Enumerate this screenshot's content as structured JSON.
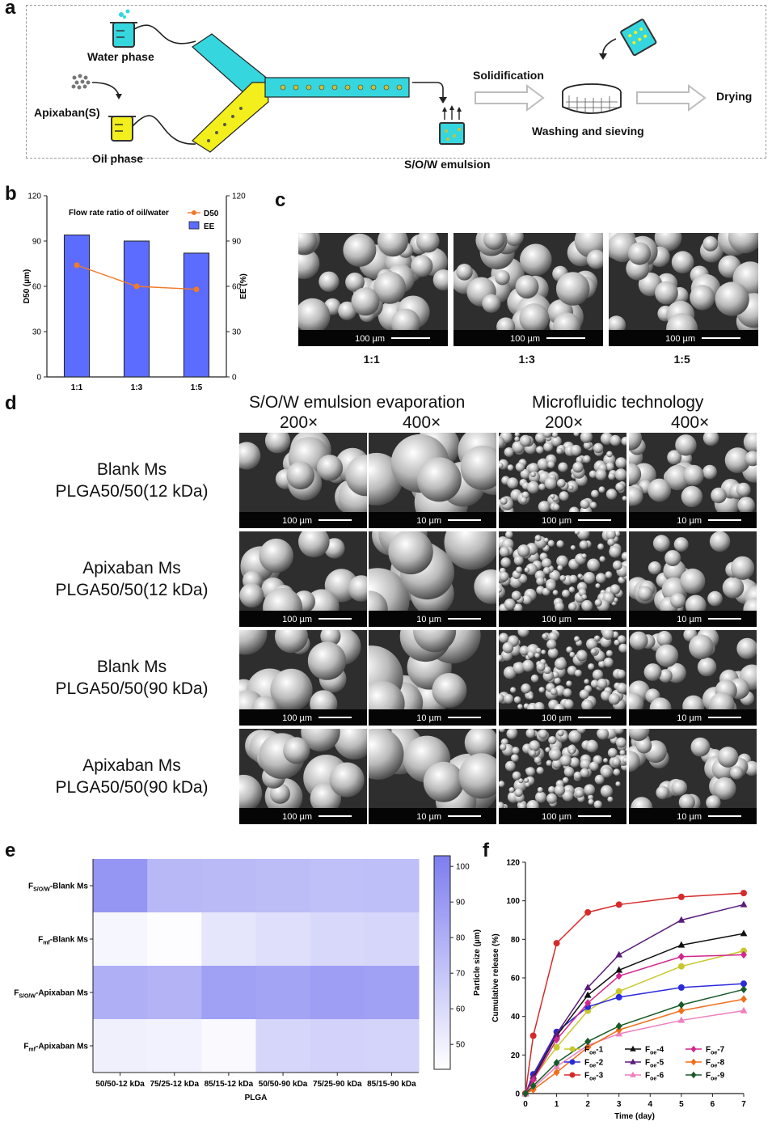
{
  "panels": {
    "a": "a",
    "b": "b",
    "c": "c",
    "d": "d",
    "e": "e",
    "f": "f"
  },
  "panel_a": {
    "water_phase": "Water phase",
    "apixaban": "Apixaban(S)",
    "oil_phase": "Oil phase",
    "emulsion": "S/O/W emulsion",
    "solidification": "Solidification",
    "washing": "Washing and sieving",
    "drying": "Drying",
    "colors": {
      "water": "#35d6de",
      "oil": "#f2ef1c",
      "droplet": "#c9c23a",
      "arrow": "#bdbdbd"
    }
  },
  "panel_c": {
    "images": [
      {
        "label": "1:1",
        "scale": "100 µm"
      },
      {
        "label": "1:3",
        "scale": "100 µm"
      },
      {
        "label": "1:5",
        "scale": "100 µm"
      }
    ]
  },
  "panel_d": {
    "group_headers": [
      "S/O/W emulsion evaporation",
      "Microfluidic technology"
    ],
    "magnifications": [
      "200×",
      "400×",
      "200×",
      "400×"
    ],
    "rows": [
      {
        "line1": "Blank Ms",
        "line2": "PLGA50/50(12 kDa)",
        "scales": [
          "100 µm",
          "10 µm",
          "100 µm",
          "10 µm"
        ]
      },
      {
        "line1": "Apixaban Ms",
        "line2": "PLGA50/50(12 kDa)",
        "scales": [
          "100 µm",
          "10 µm",
          "100 µm",
          "10 µm"
        ]
      },
      {
        "line1": "Blank Ms",
        "line2": "PLGA50/50(90 kDa)",
        "scales": [
          "100 µm",
          "10 µm",
          "100 µm",
          "10 µm"
        ]
      },
      {
        "line1": "Apixaban Ms",
        "line2": "PLGA50/50(90 kDa)",
        "scales": [
          "100 µm",
          "10 µm",
          "100 µm",
          "10 µm"
        ]
      }
    ]
  },
  "chart_data": [
    {
      "id": "b",
      "type": "bar",
      "title": "Flow rate ratio of oil/water",
      "categories": [
        "1:1",
        "1:3",
        "1:5"
      ],
      "series": [
        {
          "name": "EE",
          "axis": "right",
          "type": "bar",
          "color": "#5b6cff",
          "values": [
            94,
            90,
            82
          ]
        },
        {
          "name": "D50",
          "axis": "left",
          "type": "line",
          "color": "#f07a2a",
          "values": [
            74,
            60,
            58
          ]
        }
      ],
      "ylabel": "D50 (µm)",
      "ylabel_right": "EE (%)",
      "ylim": [
        0,
        120
      ],
      "yticks": [
        0,
        30,
        60,
        90,
        120
      ],
      "legend": "top-right"
    },
    {
      "id": "e",
      "type": "heatmap",
      "xlabel": "PLGA",
      "x": [
        "50/50-12 kDa",
        "75/25-12 kDa",
        "85/15-12 kDa",
        "50/50-90 kDa",
        "75/25-90 kDa",
        "85/15-90 kDa"
      ],
      "y": [
        "F_S/O/W-Blank Ms",
        "F_mf-Blank Ms",
        "F_S/O/W-Apixaban Ms",
        "F_mf-Apixaban Ms"
      ],
      "y_main": [
        "F",
        "F",
        "F",
        "F"
      ],
      "y_sub": [
        "S/O/W",
        "mf",
        "S/O/W",
        "mf"
      ],
      "y_rest": [
        "-Blank Ms",
        "-Blank Ms",
        "-Apixaban Ms",
        "-Apixaban Ms"
      ],
      "values": [
        [
          92,
          76,
          75,
          74,
          72,
          73
        ],
        [
          47,
          44,
          55,
          58,
          61,
          62
        ],
        [
          80,
          78,
          87,
          85,
          88,
          87
        ],
        [
          50,
          49,
          46,
          62,
          64,
          63
        ]
      ],
      "colorbar_label": "Particle size (µm)",
      "colorbar_ticks": [
        50,
        60,
        70,
        80,
        90,
        100
      ],
      "vrange": [
        43,
        103
      ],
      "colors": {
        "low": "#ffffff",
        "high": "#7d7df0"
      }
    },
    {
      "id": "f",
      "type": "line",
      "xlabel": "Time (day)",
      "ylabel": "Cumulative release (%)",
      "x": [
        0,
        0.25,
        1,
        2,
        3,
        5,
        7
      ],
      "xlim": [
        0,
        7
      ],
      "xticks": [
        0,
        1,
        2,
        3,
        4,
        5,
        6,
        7
      ],
      "ylim": [
        0,
        120
      ],
      "yticks": [
        0,
        20,
        40,
        60,
        80,
        100,
        120
      ],
      "legend": "bottom-right",
      "series": [
        {
          "name": "F",
          "sub": "oe",
          "num": "-1",
          "color": "#c8c82e",
          "marker": "circle",
          "values": [
            0,
            8,
            24,
            43,
            53,
            66,
            74
          ]
        },
        {
          "name": "F",
          "sub": "oe",
          "num": "-2",
          "color": "#2b2bdc",
          "marker": "circle",
          "values": [
            0,
            10,
            32,
            45,
            50,
            55,
            57
          ]
        },
        {
          "name": "F",
          "sub": "oe",
          "num": "-3",
          "color": "#d62a2a",
          "marker": "circle",
          "values": [
            0,
            30,
            78,
            94,
            98,
            102,
            104
          ]
        },
        {
          "name": "F",
          "sub": "oe",
          "num": "-4",
          "color": "#111111",
          "marker": "triangle",
          "values": [
            0,
            8,
            30,
            51,
            64,
            77,
            83
          ]
        },
        {
          "name": "F",
          "sub": "oe",
          "num": "-5",
          "color": "#5a1b7a",
          "marker": "triangle",
          "values": [
            0,
            9,
            31,
            55,
            72,
            90,
            98
          ]
        },
        {
          "name": "F",
          "sub": "oe",
          "num": "-6",
          "color": "#ef7fbd",
          "marker": "triangle",
          "values": [
            0,
            3,
            14,
            25,
            31,
            38,
            43
          ]
        },
        {
          "name": "F",
          "sub": "oe",
          "num": "-7",
          "color": "#d0288c",
          "marker": "diamond",
          "values": [
            0,
            7,
            28,
            47,
            61,
            71,
            72
          ]
        },
        {
          "name": "F",
          "sub": "oe",
          "num": "-8",
          "color": "#ef6f1a",
          "marker": "diamond",
          "values": [
            0,
            2,
            11,
            24,
            33,
            43,
            49
          ]
        },
        {
          "name": "F",
          "sub": "oe",
          "num": "-9",
          "color": "#1a5a2a",
          "marker": "diamond",
          "values": [
            0,
            4,
            16,
            27,
            35,
            46,
            54
          ]
        }
      ]
    }
  ]
}
